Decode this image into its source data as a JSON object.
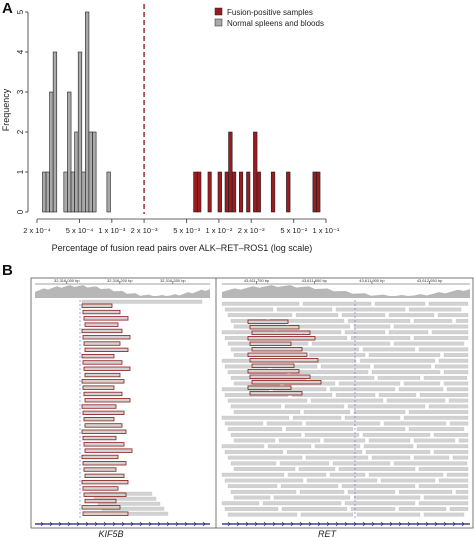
{
  "panel_a_letter": "A",
  "panel_b_letter": "B",
  "chart_data": [
    {
      "type": "bar",
      "subtype": "histogram",
      "xscale": "log",
      "xlabel": "Percentage of fusion read pairs over ALK–RET–ROS1 (log scale)",
      "ylabel": "Frequency",
      "ylim": [
        0,
        5
      ],
      "yticks": [
        "0",
        "1",
        "2",
        "3",
        "4",
        "5"
      ],
      "xlim": [
        0.0002,
        0.1
      ],
      "xticks": [
        {
          "value": 0.0002,
          "label": "2 x 10⁻⁴"
        },
        {
          "value": 0.0005,
          "label": "5 x 10⁻⁴"
        },
        {
          "value": 0.001,
          "label": "1 x 10⁻³"
        },
        {
          "value": 0.002,
          "label": "2 x 10⁻³"
        },
        {
          "value": 0.005,
          "label": "5 x 10⁻³"
        },
        {
          "value": 0.01,
          "label": "1 x 10⁻²"
        },
        {
          "value": 0.02,
          "label": "2 x 10⁻²"
        },
        {
          "value": 0.05,
          "label": "5 x 10⁻²"
        },
        {
          "value": 0.1,
          "label": "1 x 10⁻¹"
        }
      ],
      "threshold": {
        "value": 0.002,
        "style": "dashed",
        "color": "#9b1b1f"
      },
      "legend_position": "top-right",
      "series": [
        {
          "name": "Fusion-positive samples",
          "color": "#9b1b1f",
          "bins": [
            {
              "x0": 0.0058,
              "x1": 0.0063,
              "count": 1
            },
            {
              "x0": 0.0063,
              "x1": 0.0068,
              "count": 1
            },
            {
              "x0": 0.0079,
              "x1": 0.0085,
              "count": 1
            },
            {
              "x0": 0.0098,
              "x1": 0.0106,
              "count": 1
            },
            {
              "x0": 0.0114,
              "x1": 0.0123,
              "count": 1
            },
            {
              "x0": 0.0123,
              "x1": 0.0133,
              "count": 2
            },
            {
              "x0": 0.0133,
              "x1": 0.0144,
              "count": 1
            },
            {
              "x0": 0.0155,
              "x1": 0.0167,
              "count": 1
            },
            {
              "x0": 0.0181,
              "x1": 0.0195,
              "count": 1
            },
            {
              "x0": 0.021,
              "x1": 0.0227,
              "count": 2
            },
            {
              "x0": 0.0227,
              "x1": 0.0245,
              "count": 1
            },
            {
              "x0": 0.0308,
              "x1": 0.0333,
              "count": 1
            },
            {
              "x0": 0.0427,
              "x1": 0.0462,
              "count": 1
            },
            {
              "x0": 0.0754,
              "x1": 0.0815,
              "count": 1
            },
            {
              "x0": 0.0815,
              "x1": 0.088,
              "count": 1
            }
          ]
        },
        {
          "name": "Normal spleens and bloods",
          "color": "#a9a9a9",
          "bins": [
            {
              "x0": 0.000225,
              "x1": 0.000243,
              "count": 1
            },
            {
              "x0": 0.000243,
              "x1": 0.000262,
              "count": 1
            },
            {
              "x0": 0.000262,
              "x1": 0.000283,
              "count": 3
            },
            {
              "x0": 0.000283,
              "x1": 0.000306,
              "count": 4
            },
            {
              "x0": 0.000356,
              "x1": 0.000385,
              "count": 1
            },
            {
              "x0": 0.000385,
              "x1": 0.000416,
              "count": 3
            },
            {
              "x0": 0.000416,
              "x1": 0.000449,
              "count": 1
            },
            {
              "x0": 0.000449,
              "x1": 0.000485,
              "count": 2
            },
            {
              "x0": 0.000485,
              "x1": 0.000524,
              "count": 4
            },
            {
              "x0": 0.000524,
              "x1": 0.000566,
              "count": 1
            },
            {
              "x0": 0.000566,
              "x1": 0.000611,
              "count": 5
            },
            {
              "x0": 0.000611,
              "x1": 0.00066,
              "count": 2
            },
            {
              "x0": 0.00066,
              "x1": 0.000713,
              "count": 2
            },
            {
              "x0": 0.000899,
              "x1": 0.000971,
              "count": 1
            }
          ]
        }
      ]
    },
    {
      "type": "genome-browser",
      "tracks": [
        {
          "gene": "KIF5B",
          "coordinates": [
            "32,316,000 bp",
            "32,316,200 bp",
            "32,316,350 bp"
          ],
          "read_colors": {
            "fusion_outline": "#8b1a1a",
            "read_fill": "#d2d2d2"
          }
        },
        {
          "gene": "RET",
          "coordinates": [
            "43,611,750 bp",
            "43,611,800 bp",
            "43,611,900 bp",
            "43,612,050 bp"
          ],
          "read_colors": {
            "fusion_outline": "#8b1a1a",
            "read_fill": "#d2d2d2"
          }
        }
      ]
    }
  ]
}
